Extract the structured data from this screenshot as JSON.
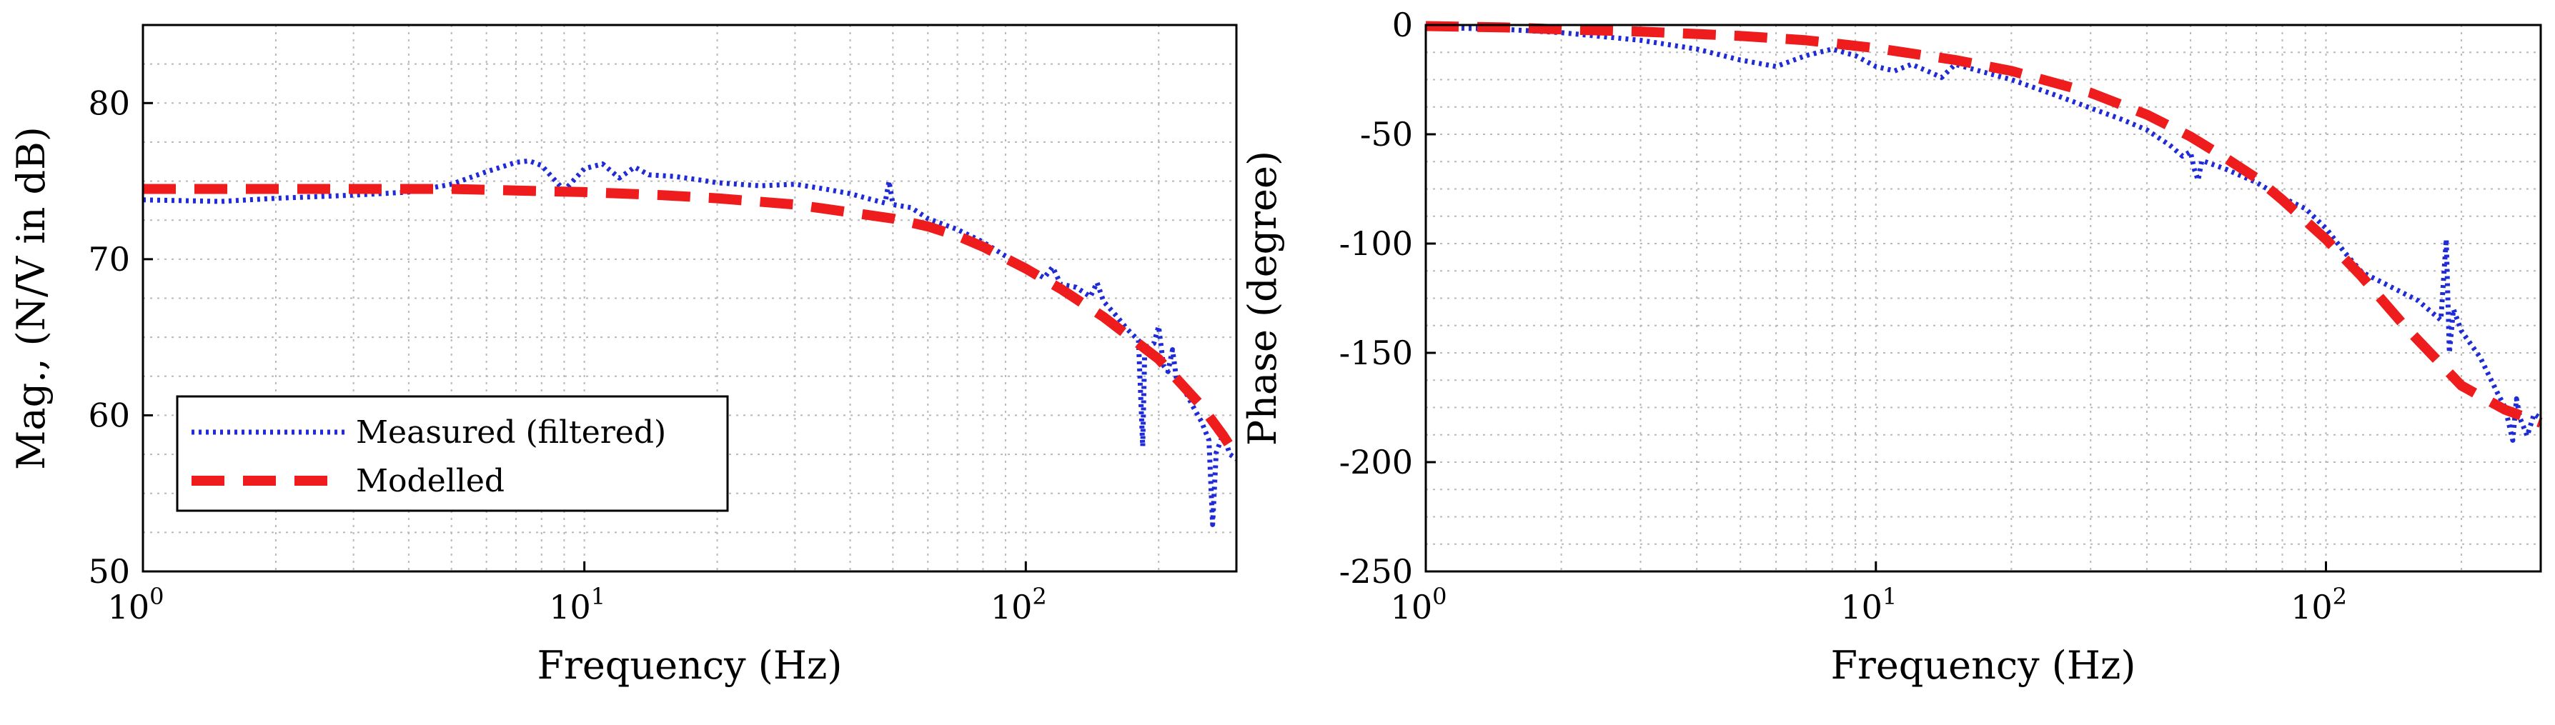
{
  "colors": {
    "measured": "#1f2bd6",
    "modelled": "#ee1c1c",
    "grid": "#b8b8b8"
  },
  "chart_data": [
    {
      "type": "line",
      "xscale": "log",
      "xlabel": "Frequency (Hz)",
      "ylabel": "Mag., (N/V in dB)",
      "xlim": [
        1,
        300
      ],
      "ylim": [
        50,
        85
      ],
      "x_ticks": [
        {
          "base": "10",
          "exp": "0",
          "value": 1
        },
        {
          "base": "10",
          "exp": "1",
          "value": 10
        },
        {
          "base": "10",
          "exp": "2",
          "value": 100
        }
      ],
      "y_ticks": [
        {
          "label": "50",
          "value": 50
        },
        {
          "label": "60",
          "value": 60
        },
        {
          "label": "70",
          "value": 70
        },
        {
          "label": "80",
          "value": 80
        }
      ],
      "grid": true,
      "legend": {
        "position": "bottom-left",
        "entries": [
          "Measured (filtered)",
          "Modelled"
        ]
      },
      "series": [
        {
          "name": "Measured (filtered)",
          "style": "dotted",
          "points": [
            [
              1,
              73.8
            ],
            [
              1.5,
              73.7
            ],
            [
              2,
              73.9
            ],
            [
              3,
              74.1
            ],
            [
              4,
              74.3
            ],
            [
              5,
              74.8
            ],
            [
              6,
              75.6
            ],
            [
              7,
              76.2
            ],
            [
              7.5,
              76.3
            ],
            [
              8,
              76
            ],
            [
              9,
              74.4
            ],
            [
              10,
              75.8
            ],
            [
              11,
              76.1
            ],
            [
              12,
              75.2
            ],
            [
              13,
              75.9
            ],
            [
              14,
              75.4
            ],
            [
              16,
              75.3
            ],
            [
              18,
              75.1
            ],
            [
              20,
              74.9
            ],
            [
              25,
              74.7
            ],
            [
              30,
              74.8
            ],
            [
              35,
              74.5
            ],
            [
              40,
              74.2
            ],
            [
              45,
              73.8
            ],
            [
              48,
              73.6
            ],
            [
              49,
              75
            ],
            [
              50,
              73.5
            ],
            [
              55,
              73.3
            ],
            [
              60,
              72.6
            ],
            [
              70,
              71.9
            ],
            [
              80,
              71.1
            ],
            [
              90,
              70.2
            ],
            [
              100,
              69.5
            ],
            [
              110,
              68.8
            ],
            [
              115,
              69.5
            ],
            [
              120,
              68.4
            ],
            [
              130,
              68.2
            ],
            [
              140,
              67.6
            ],
            [
              145,
              68.5
            ],
            [
              150,
              67.3
            ],
            [
              160,
              66.4
            ],
            [
              170,
              65.5
            ],
            [
              180,
              64.8
            ],
            [
              184,
              58
            ],
            [
              186,
              64.3
            ],
            [
              195,
              64.6
            ],
            [
              200,
              65.7
            ],
            [
              205,
              63.2
            ],
            [
              210,
              62.8
            ],
            [
              215,
              64.2
            ],
            [
              220,
              62.1
            ],
            [
              230,
              61.5
            ],
            [
              240,
              60.5
            ],
            [
              250,
              59.6
            ],
            [
              260,
              58.4
            ],
            [
              265,
              53
            ],
            [
              270,
              57.6
            ],
            [
              280,
              58.8
            ],
            [
              290,
              57.5
            ],
            [
              300,
              57.2
            ]
          ]
        },
        {
          "name": "Modelled",
          "style": "dashed",
          "points": [
            [
              1,
              74.5
            ],
            [
              2,
              74.5
            ],
            [
              3,
              74.5
            ],
            [
              5,
              74.5
            ],
            [
              7,
              74.4
            ],
            [
              10,
              74.3
            ],
            [
              15,
              74.1
            ],
            [
              20,
              73.9
            ],
            [
              30,
              73.5
            ],
            [
              40,
              73
            ],
            [
              50,
              72.6
            ],
            [
              60,
              72.1
            ],
            [
              70,
              71.5
            ],
            [
              80,
              70.8
            ],
            [
              100,
              69.4
            ],
            [
              120,
              68.1
            ],
            [
              150,
              66.3
            ],
            [
              200,
              63.6
            ],
            [
              250,
              60.6
            ],
            [
              280,
              58.7
            ],
            [
              300,
              57.4
            ]
          ]
        }
      ]
    },
    {
      "type": "line",
      "xscale": "log",
      "xlabel": "Frequency (Hz)",
      "ylabel": "Phase (degree)",
      "xlim": [
        1,
        300
      ],
      "ylim": [
        -250,
        0
      ],
      "x_ticks": [
        {
          "base": "10",
          "exp": "0",
          "value": 1
        },
        {
          "base": "10",
          "exp": "1",
          "value": 10
        },
        {
          "base": "10",
          "exp": "2",
          "value": 100
        }
      ],
      "y_ticks": [
        {
          "label": "0",
          "value": 0
        },
        {
          "label": "-50",
          "value": -50
        },
        {
          "label": "-100",
          "value": -100
        },
        {
          "label": "-150",
          "value": -150
        },
        {
          "label": "-200",
          "value": -200
        },
        {
          "label": "-250",
          "value": -250
        }
      ],
      "grid": true,
      "series": [
        {
          "name": "Measured (filtered)",
          "style": "dotted",
          "points": [
            [
              1,
              -1
            ],
            [
              1.5,
              -2
            ],
            [
              2,
              -3.5
            ],
            [
              3,
              -7
            ],
            [
              4,
              -11
            ],
            [
              5,
              -16
            ],
            [
              6,
              -19
            ],
            [
              7,
              -14
            ],
            [
              8,
              -11
            ],
            [
              9,
              -14
            ],
            [
              10,
              -19
            ],
            [
              11,
              -21
            ],
            [
              12,
              -18
            ],
            [
              13,
              -21
            ],
            [
              14,
              -24
            ],
            [
              15,
              -18
            ],
            [
              20,
              -25
            ],
            [
              25,
              -32
            ],
            [
              30,
              -38
            ],
            [
              35,
              -43
            ],
            [
              40,
              -48
            ],
            [
              45,
              -55
            ],
            [
              48,
              -60
            ],
            [
              50,
              -58
            ],
            [
              51,
              -66
            ],
            [
              52,
              -71
            ],
            [
              53,
              -62
            ],
            [
              60,
              -66
            ],
            [
              70,
              -72
            ],
            [
              80,
              -79
            ],
            [
              90,
              -84
            ],
            [
              100,
              -93
            ],
            [
              110,
              -104
            ],
            [
              120,
              -113
            ],
            [
              140,
              -120
            ],
            [
              160,
              -126
            ],
            [
              180,
              -135
            ],
            [
              185,
              -98
            ],
            [
              188,
              -150
            ],
            [
              192,
              -130
            ],
            [
              200,
              -140
            ],
            [
              220,
              -152
            ],
            [
              240,
              -168
            ],
            [
              250,
              -175
            ],
            [
              260,
              -190
            ],
            [
              265,
              -171
            ],
            [
              270,
              -180
            ],
            [
              280,
              -188
            ],
            [
              290,
              -178
            ],
            [
              300,
              -180
            ]
          ]
        },
        {
          "name": "Modelled",
          "style": "dashed",
          "points": [
            [
              1,
              -0.5
            ],
            [
              1.5,
              -1.1
            ],
            [
              2,
              -2
            ],
            [
              3,
              -3
            ],
            [
              5,
              -5
            ],
            [
              7,
              -7
            ],
            [
              10,
              -10.6
            ],
            [
              15,
              -16
            ],
            [
              20,
              -21
            ],
            [
              30,
              -31
            ],
            [
              40,
              -41
            ],
            [
              50,
              -51
            ],
            [
              60,
              -61
            ],
            [
              70,
              -70
            ],
            [
              80,
              -80
            ],
            [
              100,
              -98
            ],
            [
              120,
              -115
            ],
            [
              150,
              -138
            ],
            [
              200,
              -165
            ],
            [
              250,
              -176
            ],
            [
              300,
              -182
            ]
          ]
        }
      ]
    }
  ]
}
